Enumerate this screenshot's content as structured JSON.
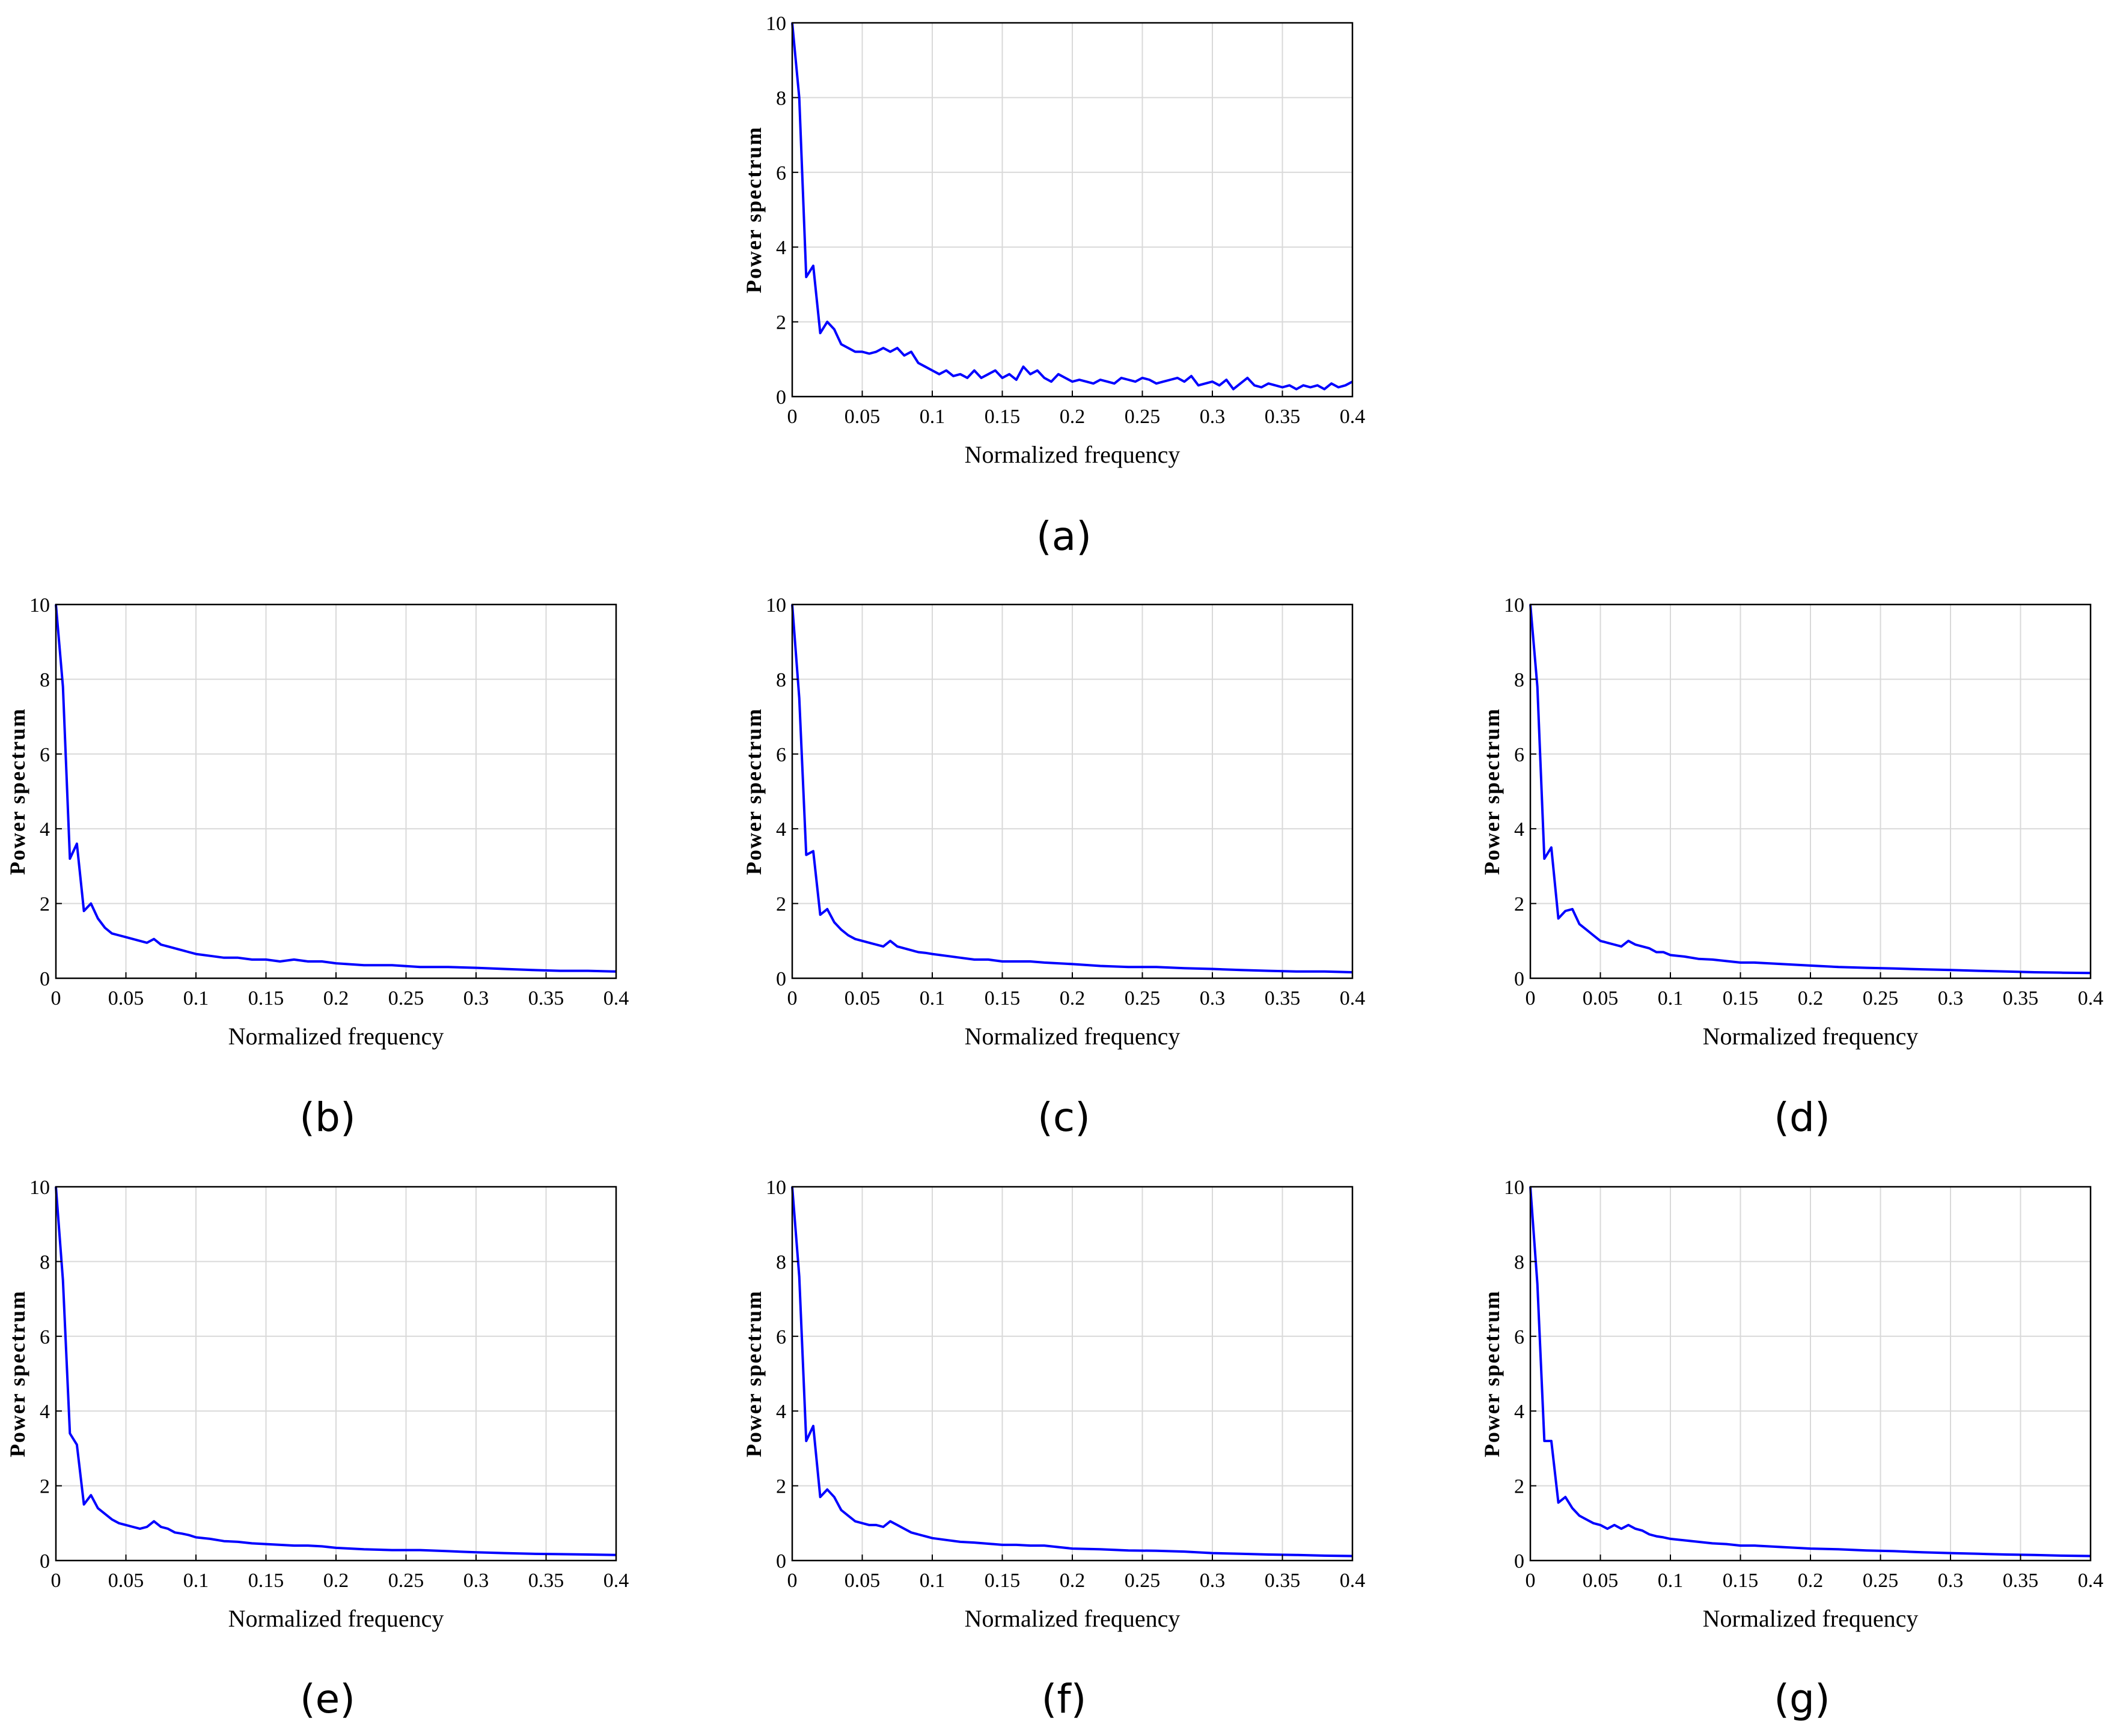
{
  "colors": {
    "line": "#0000ff",
    "grid": "#d9d9d9",
    "axes": "#000000"
  },
  "panels": [
    {
      "caption": "(a)",
      "xlabel": "Normalized frequency",
      "ylabel": "Power spectrum"
    },
    {
      "caption": "(b)",
      "xlabel": "Normalized frequency",
      "ylabel": "Power spectrum"
    },
    {
      "caption": "(c)",
      "xlabel": "Normalized frequency",
      "ylabel": "Power spectrum"
    },
    {
      "caption": "(d)",
      "xlabel": "Normalized frequency",
      "ylabel": "Power spectrum"
    },
    {
      "caption": "(e)",
      "xlabel": "Normalized frequency",
      "ylabel": "Power spectrum"
    },
    {
      "caption": "(f)",
      "xlabel": "Normalized frequency",
      "ylabel": "Power spectrum"
    },
    {
      "caption": "(g)",
      "xlabel": "Normalized frequency",
      "ylabel": "Power spectrum"
    }
  ],
  "chart_data": [
    {
      "type": "line",
      "title": "",
      "xlabel": "Normalized frequency",
      "ylabel": "Power spectrum",
      "xlim": [
        0,
        0.4
      ],
      "ylim": [
        0,
        10
      ],
      "grid": true,
      "xticks": [
        0,
        0.05,
        0.1,
        0.15,
        0.2,
        0.25,
        0.3,
        0.35,
        0.4
      ],
      "xtick_labels": [
        "0",
        "0.05",
        "0.1",
        "0.15",
        "0.2",
        "0.25",
        "0.3",
        "0.35",
        "0.4"
      ],
      "yticks": [
        0,
        2,
        4,
        6,
        8,
        10
      ],
      "ytick_labels": [
        "0",
        "2",
        "4",
        "6",
        "8",
        "10"
      ],
      "x": [
        0,
        0.005,
        0.01,
        0.015,
        0.02,
        0.025,
        0.03,
        0.035,
        0.04,
        0.045,
        0.05,
        0.055,
        0.06,
        0.065,
        0.07,
        0.075,
        0.08,
        0.085,
        0.09,
        0.095,
        0.1,
        0.105,
        0.11,
        0.115,
        0.12,
        0.125,
        0.13,
        0.135,
        0.14,
        0.145,
        0.15,
        0.155,
        0.16,
        0.165,
        0.17,
        0.175,
        0.18,
        0.185,
        0.19,
        0.195,
        0.2,
        0.205,
        0.21,
        0.215,
        0.22,
        0.225,
        0.23,
        0.235,
        0.24,
        0.245,
        0.25,
        0.255,
        0.26,
        0.265,
        0.27,
        0.275,
        0.28,
        0.285,
        0.29,
        0.295,
        0.3,
        0.305,
        0.31,
        0.315,
        0.32,
        0.325,
        0.33,
        0.335,
        0.34,
        0.345,
        0.35,
        0.355,
        0.36,
        0.365,
        0.37,
        0.375,
        0.38,
        0.385,
        0.39,
        0.395,
        0.4
      ],
      "series": [
        {
          "values": [
            10,
            8.0,
            3.2,
            3.5,
            1.7,
            2.0,
            1.8,
            1.4,
            1.3,
            1.2,
            1.2,
            1.15,
            1.2,
            1.3,
            1.2,
            1.3,
            1.1,
            1.2,
            0.9,
            0.8,
            0.7,
            0.6,
            0.7,
            0.55,
            0.6,
            0.5,
            0.7,
            0.5,
            0.6,
            0.7,
            0.5,
            0.6,
            0.45,
            0.8,
            0.6,
            0.7,
            0.5,
            0.4,
            0.6,
            0.5,
            0.4,
            0.45,
            0.4,
            0.35,
            0.45,
            0.4,
            0.35,
            0.5,
            0.45,
            0.4,
            0.5,
            0.45,
            0.35,
            0.4,
            0.45,
            0.5,
            0.4,
            0.55,
            0.3,
            0.35,
            0.4,
            0.3,
            0.45,
            0.2,
            0.35,
            0.5,
            0.3,
            0.25,
            0.35,
            0.3,
            0.25,
            0.3,
            0.2,
            0.3,
            0.25,
            0.3,
            0.2,
            0.35,
            0.25,
            0.3,
            0.4
          ]
        }
      ]
    },
    {
      "type": "line",
      "title": "",
      "xlabel": "Normalized frequency",
      "ylabel": "Power spectrum",
      "xlim": [
        0,
        0.4
      ],
      "ylim": [
        0,
        10
      ],
      "grid": true,
      "xticks": [
        0,
        0.05,
        0.1,
        0.15,
        0.2,
        0.25,
        0.3,
        0.35,
        0.4
      ],
      "xtick_labels": [
        "0",
        "0.05",
        "0.1",
        "0.15",
        "0.2",
        "0.25",
        "0.3",
        "0.35",
        "0.4"
      ],
      "yticks": [
        0,
        2,
        4,
        6,
        8,
        10
      ],
      "ytick_labels": [
        "0",
        "2",
        "4",
        "6",
        "8",
        "10"
      ],
      "x": [
        0,
        0.005,
        0.01,
        0.015,
        0.02,
        0.025,
        0.03,
        0.035,
        0.04,
        0.045,
        0.05,
        0.055,
        0.06,
        0.065,
        0.07,
        0.075,
        0.08,
        0.085,
        0.09,
        0.095,
        0.1,
        0.11,
        0.12,
        0.13,
        0.14,
        0.15,
        0.16,
        0.17,
        0.18,
        0.19,
        0.2,
        0.22,
        0.24,
        0.26,
        0.28,
        0.3,
        0.32,
        0.34,
        0.36,
        0.38,
        0.4
      ],
      "series": [
        {
          "values": [
            10,
            7.8,
            3.2,
            3.6,
            1.8,
            2.0,
            1.6,
            1.35,
            1.2,
            1.15,
            1.1,
            1.05,
            1.0,
            0.95,
            1.05,
            0.9,
            0.85,
            0.8,
            0.75,
            0.7,
            0.65,
            0.6,
            0.55,
            0.55,
            0.5,
            0.5,
            0.45,
            0.5,
            0.45,
            0.45,
            0.4,
            0.35,
            0.35,
            0.3,
            0.3,
            0.28,
            0.25,
            0.22,
            0.2,
            0.2,
            0.18
          ]
        }
      ]
    },
    {
      "type": "line",
      "title": "",
      "xlabel": "Normalized frequency",
      "ylabel": "Power spectrum",
      "xlim": [
        0,
        0.4
      ],
      "ylim": [
        0,
        10
      ],
      "grid": true,
      "xticks": [
        0,
        0.05,
        0.1,
        0.15,
        0.2,
        0.25,
        0.3,
        0.35,
        0.4
      ],
      "xtick_labels": [
        "0",
        "0.05",
        "0.1",
        "0.15",
        "0.2",
        "0.25",
        "0.3",
        "0.35",
        "0.4"
      ],
      "yticks": [
        0,
        2,
        4,
        6,
        8,
        10
      ],
      "ytick_labels": [
        "0",
        "2",
        "4",
        "6",
        "8",
        "10"
      ],
      "x": [
        0,
        0.005,
        0.01,
        0.015,
        0.02,
        0.025,
        0.03,
        0.035,
        0.04,
        0.045,
        0.05,
        0.055,
        0.06,
        0.065,
        0.07,
        0.075,
        0.08,
        0.085,
        0.09,
        0.095,
        0.1,
        0.11,
        0.12,
        0.13,
        0.14,
        0.15,
        0.16,
        0.17,
        0.18,
        0.19,
        0.2,
        0.22,
        0.24,
        0.26,
        0.28,
        0.3,
        0.32,
        0.34,
        0.36,
        0.38,
        0.4
      ],
      "series": [
        {
          "values": [
            10,
            7.5,
            3.3,
            3.4,
            1.7,
            1.85,
            1.5,
            1.3,
            1.15,
            1.05,
            1.0,
            0.95,
            0.9,
            0.85,
            1.0,
            0.85,
            0.8,
            0.75,
            0.7,
            0.68,
            0.65,
            0.6,
            0.55,
            0.5,
            0.5,
            0.45,
            0.45,
            0.45,
            0.42,
            0.4,
            0.38,
            0.33,
            0.3,
            0.3,
            0.27,
            0.25,
            0.22,
            0.2,
            0.18,
            0.18,
            0.16
          ]
        }
      ]
    },
    {
      "type": "line",
      "title": "",
      "xlabel": "Normalized frequency",
      "ylabel": "Power spectrum",
      "xlim": [
        0,
        0.4
      ],
      "ylim": [
        0,
        10
      ],
      "grid": true,
      "xticks": [
        0,
        0.05,
        0.1,
        0.15,
        0.2,
        0.25,
        0.3,
        0.35,
        0.4
      ],
      "xtick_labels": [
        "0",
        "0.05",
        "0.1",
        "0.15",
        "0.2",
        "0.25",
        "0.3",
        "0.35",
        "0.4"
      ],
      "yticks": [
        0,
        2,
        4,
        6,
        8,
        10
      ],
      "ytick_labels": [
        "0",
        "2",
        "4",
        "6",
        "8",
        "10"
      ],
      "x": [
        0,
        0.005,
        0.01,
        0.015,
        0.02,
        0.025,
        0.03,
        0.035,
        0.04,
        0.045,
        0.05,
        0.055,
        0.06,
        0.065,
        0.07,
        0.075,
        0.08,
        0.085,
        0.09,
        0.095,
        0.1,
        0.11,
        0.12,
        0.13,
        0.14,
        0.15,
        0.16,
        0.17,
        0.18,
        0.19,
        0.2,
        0.22,
        0.24,
        0.26,
        0.28,
        0.3,
        0.32,
        0.34,
        0.36,
        0.38,
        0.4
      ],
      "series": [
        {
          "values": [
            10,
            7.8,
            3.2,
            3.5,
            1.6,
            1.8,
            1.85,
            1.45,
            1.3,
            1.15,
            1.0,
            0.95,
            0.9,
            0.85,
            1.0,
            0.9,
            0.85,
            0.8,
            0.7,
            0.7,
            0.62,
            0.58,
            0.52,
            0.5,
            0.46,
            0.42,
            0.42,
            0.4,
            0.38,
            0.36,
            0.34,
            0.3,
            0.28,
            0.26,
            0.24,
            0.22,
            0.2,
            0.18,
            0.16,
            0.15,
            0.14
          ]
        }
      ]
    },
    {
      "type": "line",
      "title": "",
      "xlabel": "Normalized frequency",
      "ylabel": "Power spectrum",
      "xlim": [
        0,
        0.4
      ],
      "ylim": [
        0,
        10
      ],
      "grid": true,
      "xticks": [
        0,
        0.05,
        0.1,
        0.15,
        0.2,
        0.25,
        0.3,
        0.35,
        0.4
      ],
      "xtick_labels": [
        "0",
        "0.05",
        "0.1",
        "0.15",
        "0.2",
        "0.25",
        "0.3",
        "0.35",
        "0.4"
      ],
      "yticks": [
        0,
        2,
        4,
        6,
        8,
        10
      ],
      "ytick_labels": [
        "0",
        "2",
        "4",
        "6",
        "8",
        "10"
      ],
      "x": [
        0,
        0.005,
        0.01,
        0.015,
        0.02,
        0.025,
        0.03,
        0.035,
        0.04,
        0.045,
        0.05,
        0.055,
        0.06,
        0.065,
        0.07,
        0.075,
        0.08,
        0.085,
        0.09,
        0.095,
        0.1,
        0.11,
        0.12,
        0.13,
        0.14,
        0.15,
        0.16,
        0.17,
        0.18,
        0.19,
        0.2,
        0.22,
        0.24,
        0.26,
        0.28,
        0.3,
        0.32,
        0.34,
        0.36,
        0.38,
        0.4
      ],
      "series": [
        {
          "values": [
            10,
            7.5,
            3.4,
            3.1,
            1.5,
            1.75,
            1.4,
            1.25,
            1.1,
            1.0,
            0.95,
            0.9,
            0.85,
            0.9,
            1.05,
            0.9,
            0.85,
            0.75,
            0.72,
            0.68,
            0.62,
            0.58,
            0.52,
            0.5,
            0.46,
            0.44,
            0.42,
            0.4,
            0.4,
            0.38,
            0.34,
            0.3,
            0.28,
            0.28,
            0.25,
            0.22,
            0.2,
            0.18,
            0.17,
            0.16,
            0.15
          ]
        }
      ]
    },
    {
      "type": "line",
      "title": "",
      "xlabel": "Normalized frequency",
      "ylabel": "Power spectrum",
      "xlim": [
        0,
        0.4
      ],
      "ylim": [
        0,
        10
      ],
      "grid": true,
      "xticks": [
        0,
        0.05,
        0.1,
        0.15,
        0.2,
        0.25,
        0.3,
        0.35,
        0.4
      ],
      "xtick_labels": [
        "0",
        "0.05",
        "0.1",
        "0.15",
        "0.2",
        "0.25",
        "0.3",
        "0.35",
        "0.4"
      ],
      "yticks": [
        0,
        2,
        4,
        6,
        8,
        10
      ],
      "ytick_labels": [
        "0",
        "2",
        "4",
        "6",
        "8",
        "10"
      ],
      "x": [
        0,
        0.005,
        0.01,
        0.015,
        0.02,
        0.025,
        0.03,
        0.035,
        0.04,
        0.045,
        0.05,
        0.055,
        0.06,
        0.065,
        0.07,
        0.075,
        0.08,
        0.085,
        0.09,
        0.095,
        0.1,
        0.11,
        0.12,
        0.13,
        0.14,
        0.15,
        0.16,
        0.17,
        0.18,
        0.19,
        0.2,
        0.22,
        0.24,
        0.26,
        0.28,
        0.3,
        0.32,
        0.34,
        0.36,
        0.38,
        0.4
      ],
      "series": [
        {
          "values": [
            10,
            7.6,
            3.2,
            3.6,
            1.7,
            1.9,
            1.7,
            1.35,
            1.2,
            1.05,
            1.0,
            0.95,
            0.95,
            0.9,
            1.05,
            0.95,
            0.85,
            0.75,
            0.7,
            0.65,
            0.6,
            0.55,
            0.5,
            0.48,
            0.45,
            0.42,
            0.42,
            0.4,
            0.4,
            0.36,
            0.32,
            0.3,
            0.27,
            0.26,
            0.24,
            0.2,
            0.18,
            0.16,
            0.15,
            0.13,
            0.12
          ]
        }
      ]
    },
    {
      "type": "line",
      "title": "",
      "xlabel": "Normalized frequency",
      "ylabel": "Power spectrum",
      "xlim": [
        0,
        0.4
      ],
      "ylim": [
        0,
        10
      ],
      "grid": true,
      "xticks": [
        0,
        0.05,
        0.1,
        0.15,
        0.2,
        0.25,
        0.3,
        0.35,
        0.4
      ],
      "xtick_labels": [
        "0",
        "0.05",
        "0.1",
        "0.15",
        "0.2",
        "0.25",
        "0.3",
        "0.35",
        "0.4"
      ],
      "yticks": [
        0,
        2,
        4,
        6,
        8,
        10
      ],
      "ytick_labels": [
        "0",
        "2",
        "4",
        "6",
        "8",
        "10"
      ],
      "x": [
        0,
        0.005,
        0.01,
        0.015,
        0.02,
        0.025,
        0.03,
        0.035,
        0.04,
        0.045,
        0.05,
        0.055,
        0.06,
        0.065,
        0.07,
        0.075,
        0.08,
        0.085,
        0.09,
        0.095,
        0.1,
        0.11,
        0.12,
        0.13,
        0.14,
        0.15,
        0.16,
        0.17,
        0.18,
        0.19,
        0.2,
        0.22,
        0.24,
        0.26,
        0.28,
        0.3,
        0.32,
        0.34,
        0.36,
        0.38,
        0.4
      ],
      "series": [
        {
          "values": [
            10,
            7.4,
            3.2,
            3.2,
            1.55,
            1.7,
            1.4,
            1.2,
            1.1,
            1.0,
            0.95,
            0.85,
            0.95,
            0.85,
            0.95,
            0.85,
            0.8,
            0.7,
            0.65,
            0.62,
            0.58,
            0.54,
            0.5,
            0.46,
            0.44,
            0.4,
            0.4,
            0.38,
            0.36,
            0.34,
            0.32,
            0.3,
            0.27,
            0.25,
            0.22,
            0.2,
            0.18,
            0.16,
            0.15,
            0.13,
            0.12
          ]
        }
      ]
    }
  ]
}
